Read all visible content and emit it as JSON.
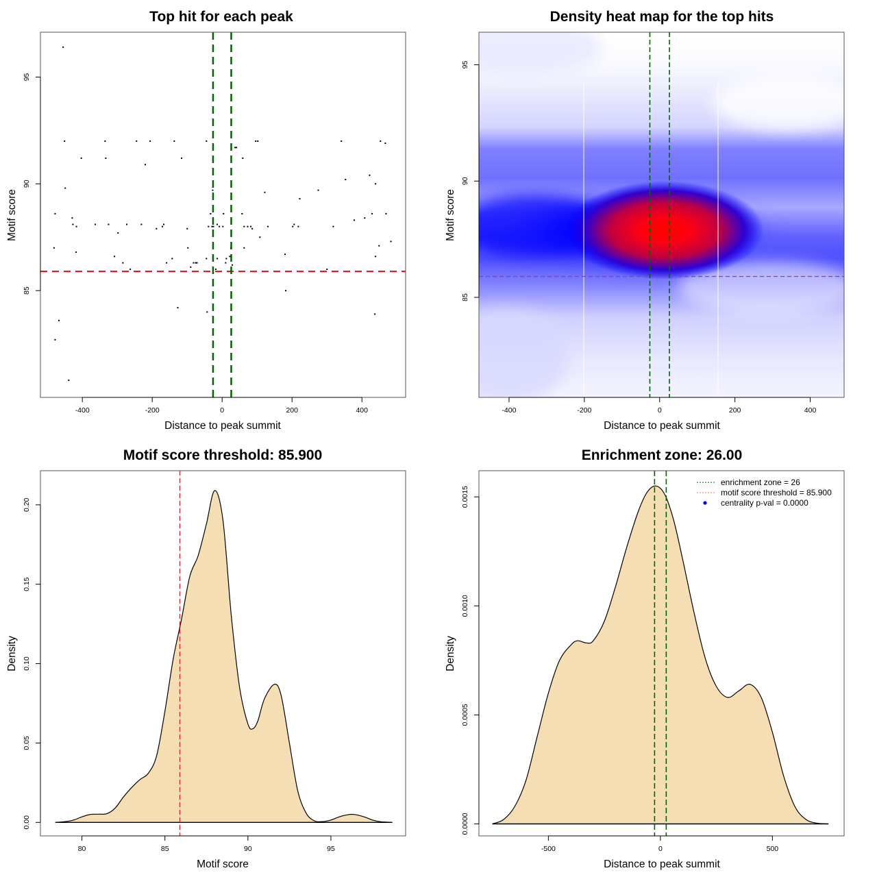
{
  "chart_data": [
    {
      "id": "scatter",
      "type": "scatter",
      "title": "Top hit for each peak",
      "xlabel": "Distance to peak summit",
      "ylabel": "Motif score",
      "xlim": [
        -520,
        525
      ],
      "ylim": [
        80.0,
        97.1
      ],
      "xticks": [
        -400,
        -200,
        0,
        200,
        400
      ],
      "xtick_labels": [
        "-400",
        "-200",
        "0",
        "200",
        "400"
      ],
      "yticks": [
        85,
        90,
        95
      ],
      "ytick_labels": [
        "85",
        "90",
        "95"
      ],
      "grid": false,
      "enrichment_zone": [
        -26,
        26
      ],
      "score_threshold": 85.9,
      "points": [
        [
          -455,
          96.4
        ],
        [
          -451,
          92.0
        ],
        [
          -449,
          89.8
        ],
        [
          -478,
          88.6
        ],
        [
          -429,
          88.4
        ],
        [
          -427,
          88.1
        ],
        [
          -417,
          88.0
        ],
        [
          -403,
          91.2
        ],
        [
          -418,
          86.8
        ],
        [
          -481,
          87.0
        ],
        [
          -478,
          82.7
        ],
        [
          -467,
          83.6
        ],
        [
          -439,
          80.8
        ],
        [
          -363,
          88.1
        ],
        [
          -335,
          92.0
        ],
        [
          -333,
          91.2
        ],
        [
          -325,
          88.1
        ],
        [
          -308,
          86.6
        ],
        [
          -298,
          87.7
        ],
        [
          -284,
          86.3
        ],
        [
          -273,
          88.1
        ],
        [
          -263,
          86.0
        ],
        [
          -245,
          92.0
        ],
        [
          -231,
          88.1
        ],
        [
          -220,
          90.9
        ],
        [
          -206,
          92.0
        ],
        [
          -188,
          87.9
        ],
        [
          -171,
          88.0
        ],
        [
          -167,
          88.1
        ],
        [
          -159,
          86.3
        ],
        [
          -143,
          86.5
        ],
        [
          -137,
          92.0
        ],
        [
          -127,
          84.2
        ],
        [
          -116,
          91.2
        ],
        [
          -100,
          87.9
        ],
        [
          -98,
          87.0
        ],
        [
          -90,
          86.1
        ],
        [
          -82,
          86.3
        ],
        [
          -76,
          86.3
        ],
        [
          -72,
          86.3
        ],
        [
          -45,
          92.0
        ],
        [
          -45,
          86.5
        ],
        [
          -43,
          84.0
        ],
        [
          -33,
          88.6
        ],
        [
          -27,
          89.7
        ],
        [
          -39,
          88.0
        ],
        [
          -29,
          88.0
        ],
        [
          -25,
          88.0
        ],
        [
          -14,
          88.1
        ],
        [
          -8,
          88.0
        ],
        [
          2,
          88.0
        ],
        [
          -14,
          86.5
        ],
        [
          -18,
          86.0
        ],
        [
          10,
          86.3
        ],
        [
          12,
          86.5
        ],
        [
          22,
          86.6
        ],
        [
          25,
          87.0
        ],
        [
          29,
          86.2
        ],
        [
          4,
          88.6
        ],
        [
          37,
          91.7
        ],
        [
          41,
          91.7
        ],
        [
          57,
          88.6
        ],
        [
          59,
          91.2
        ],
        [
          63,
          88.0
        ],
        [
          73,
          88.0
        ],
        [
          63,
          87.0
        ],
        [
          82,
          88.0
        ],
        [
          86,
          87.9
        ],
        [
          96,
          92.0
        ],
        [
          102,
          92.0
        ],
        [
          108,
          87.5
        ],
        [
          131,
          88.0
        ],
        [
          122,
          89.6
        ],
        [
          180,
          86.7
        ],
        [
          182,
          85.0
        ],
        [
          202,
          88.0
        ],
        [
          206,
          88.1
        ],
        [
          222,
          89.3
        ],
        [
          218,
          88.0
        ],
        [
          259,
          85.9
        ],
        [
          275,
          89.7
        ],
        [
          300,
          86.0
        ],
        [
          318,
          88.0
        ],
        [
          341,
          92.0
        ],
        [
          353,
          90.2
        ],
        [
          378,
          88.3
        ],
        [
          408,
          88.4
        ],
        [
          422,
          90.4
        ],
        [
          439,
          90.0
        ],
        [
          429,
          88.6
        ],
        [
          437,
          83.9
        ],
        [
          439,
          86.6
        ],
        [
          449,
          87.1
        ],
        [
          453,
          92.0
        ],
        [
          467,
          91.9
        ],
        [
          469,
          88.6
        ],
        [
          483,
          87.3
        ]
      ]
    },
    {
      "id": "heatmap",
      "type": "heatmap",
      "title": "Density heat map for the top hits",
      "xlabel": "Distance to peak summit",
      "ylabel": "Motif score",
      "xlim": [
        -480,
        490
      ],
      "ylim": [
        80.7,
        96.4
      ],
      "xticks": [
        -400,
        -200,
        0,
        200,
        400
      ],
      "xtick_labels": [
        "-400",
        "-200",
        "0",
        "200",
        "400"
      ],
      "yticks": [
        85,
        90,
        95
      ],
      "ytick_labels": [
        "85",
        "90",
        "95"
      ],
      "colormap": [
        "#ffffff",
        "#0000ff",
        "#ff0000"
      ],
      "enrichment_zone": [
        -26,
        26
      ],
      "score_threshold": 85.9,
      "density_peak": {
        "x": 0,
        "y": 87.6
      },
      "white_grid_lines_x": [
        -200,
        153
      ]
    },
    {
      "id": "score-density",
      "type": "area",
      "title": "Motif score threshold: 85.900",
      "xlabel": "Motif score",
      "ylabel": "Density",
      "xlim": [
        77.5,
        99.5
      ],
      "ylim": [
        -0.0085,
        0.2215
      ],
      "xticks": [
        80,
        85,
        90,
        95
      ],
      "xtick_labels": [
        "80",
        "85",
        "90",
        "95"
      ],
      "yticks": [
        0.0,
        0.05,
        0.1,
        0.15,
        0.2
      ],
      "ytick_labels": [
        "0.00",
        "0.05",
        "0.10",
        "0.15",
        "0.20"
      ],
      "threshold": 85.9,
      "fill": "#f5deb3",
      "x": [
        78.4,
        79.0,
        79.5,
        80.0,
        80.5,
        81.0,
        81.5,
        82.0,
        82.5,
        83.0,
        83.5,
        84.0,
        84.5,
        85.0,
        85.5,
        86.0,
        86.5,
        87.0,
        87.5,
        88.0,
        88.5,
        89.0,
        89.5,
        90.0,
        90.3,
        90.6,
        91.0,
        91.6,
        92.0,
        92.5,
        93.0,
        93.5,
        94.0,
        94.5,
        95.0,
        95.5,
        96.0,
        96.4,
        97.0,
        97.5,
        98.0,
        98.7
      ],
      "y": [
        0.0,
        0.0005,
        0.0015,
        0.0035,
        0.005,
        0.0052,
        0.0055,
        0.009,
        0.016,
        0.022,
        0.027,
        0.031,
        0.042,
        0.07,
        0.103,
        0.128,
        0.155,
        0.168,
        0.188,
        0.209,
        0.19,
        0.13,
        0.085,
        0.062,
        0.059,
        0.064,
        0.078,
        0.087,
        0.08,
        0.05,
        0.02,
        0.006,
        0.001,
        0.0005,
        0.0015,
        0.0035,
        0.0048,
        0.005,
        0.0035,
        0.0015,
        0.0004,
        0.0
      ]
    },
    {
      "id": "distance-density",
      "type": "area",
      "title": "Enrichment zone: 26.00",
      "xlabel": "Distance to peak summit",
      "ylabel": "Density",
      "xlim": [
        -810,
        820
      ],
      "ylim": [
        -5.5e-05,
        0.00162
      ],
      "xticks": [
        -500,
        0,
        500
      ],
      "xtick_labels": [
        "-500",
        "0",
        "500"
      ],
      "yticks": [
        0.0,
        0.0005,
        0.001,
        0.0015
      ],
      "ytick_labels": [
        "0.0000",
        "0.0005",
        "0.0010",
        "0.0015"
      ],
      "enrichment_zone": [
        -26,
        26
      ],
      "fill": "#f5deb3",
      "x": [
        -750,
        -700,
        -650,
        -600,
        -550,
        -500,
        -450,
        -400,
        -370,
        -330,
        -300,
        -250,
        -200,
        -150,
        -100,
        -60,
        -20,
        20,
        60,
        100,
        150,
        200,
        250,
        300,
        350,
        400,
        450,
        500,
        550,
        600,
        650,
        700,
        750
      ],
      "y": [
        0.0,
        2e-05,
        8e-05,
        0.0002,
        0.0004,
        0.0006,
        0.00075,
        0.00082,
        0.00084,
        0.00083,
        0.00084,
        0.00093,
        0.00109,
        0.00127,
        0.00143,
        0.00152,
        0.00155,
        0.00151,
        0.00139,
        0.00121,
        0.00097,
        0.00076,
        0.00063,
        0.00058,
        0.00061,
        0.00064,
        0.00058,
        0.00042,
        0.00022,
        8e-05,
        2e-05,
        3e-06,
        0.0
      ],
      "legend": {
        "position": "top-right",
        "entries": [
          {
            "label": "enrichment zone = 26",
            "style": "dotted-line",
            "color": "#006400"
          },
          {
            "label": "motif score threshold = 85.900",
            "style": "dotted-line",
            "color": "#ff6a6a"
          },
          {
            "label": "centrality p-val = 0.0000",
            "style": "dot",
            "color": "#0000ff"
          }
        ]
      }
    }
  ],
  "colors": {
    "zone_line": "#006400",
    "threshold_line": "#e02020",
    "axis": "#555555",
    "fill": "#f5deb3"
  }
}
